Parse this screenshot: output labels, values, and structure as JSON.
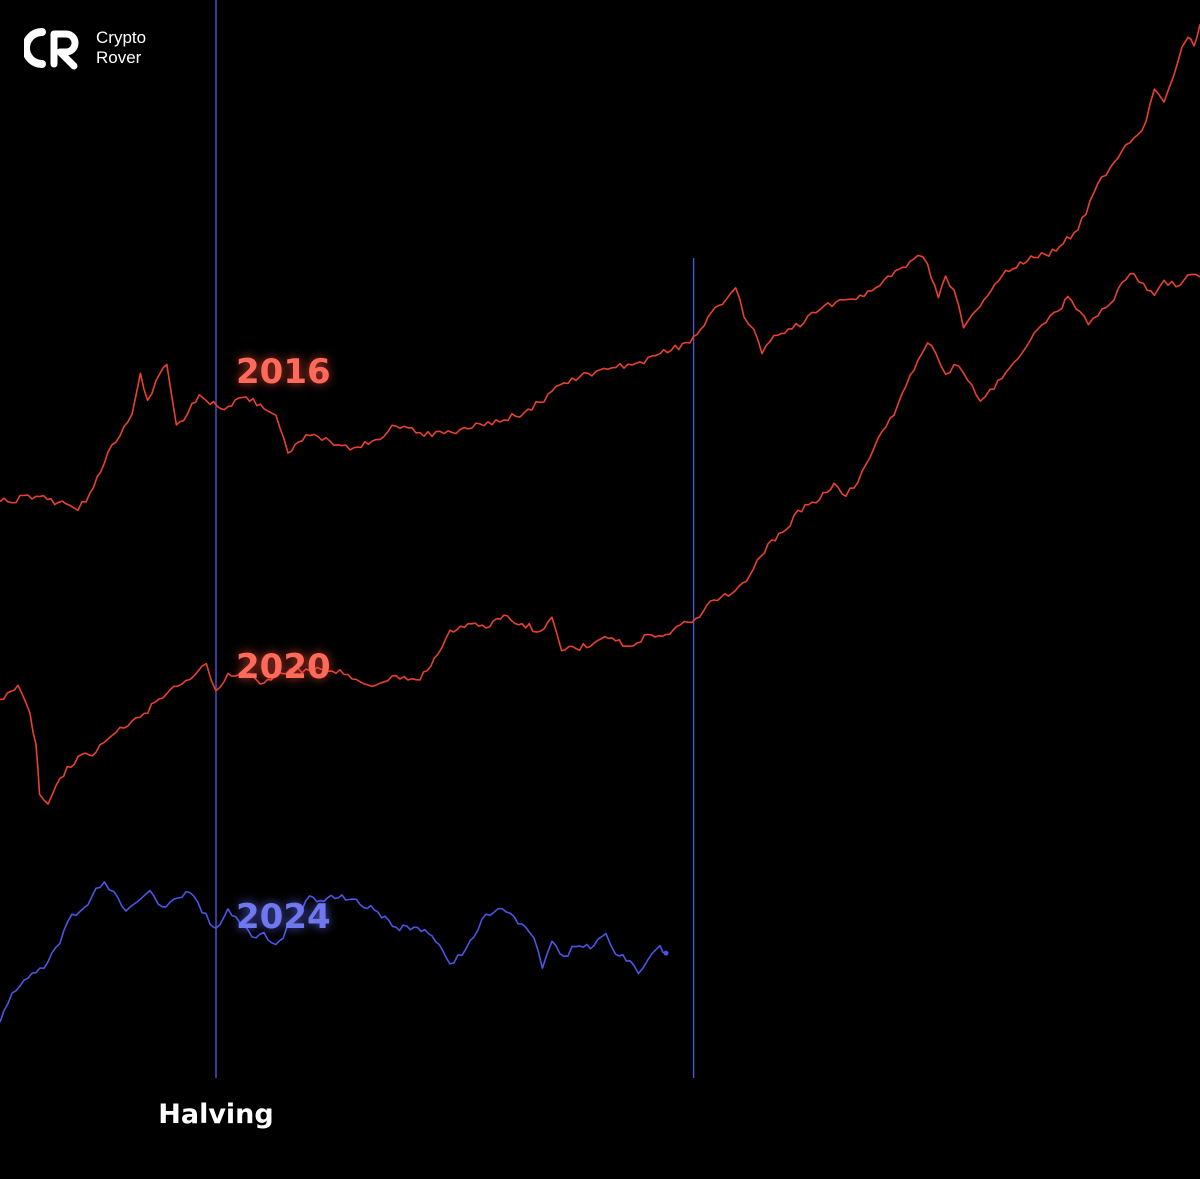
{
  "brand": {
    "line1": "Crypto",
    "line2": "Rover",
    "icon": "cr-logo-icon"
  },
  "colors": {
    "background": "#000000",
    "red_series": "#e8412f",
    "red_label": "#ff6a5a",
    "blue_series": "#4b55e6",
    "blue_label": "#6f78ee",
    "halving_line": "#4a55d8",
    "text": "#ffffff"
  },
  "chart_data": {
    "type": "line",
    "title": "",
    "xlabel": "",
    "ylabel": "",
    "grid": false,
    "axes_visible": false,
    "x_unit": "percent of horizontal span",
    "y_unit": "relative price level (0 = bottom, 100 = top)",
    "series": [
      {
        "name": "2016",
        "color": "#e8412f",
        "points": [
          [
            0,
            55.4
          ],
          [
            3,
            55.9
          ],
          [
            5.5,
            55.2
          ],
          [
            6.5,
            54.6
          ],
          [
            7.5,
            56.2
          ],
          [
            9,
            60
          ],
          [
            10,
            61.5
          ],
          [
            11,
            63.5
          ],
          [
            11.7,
            67.3
          ],
          [
            12.3,
            64.8
          ],
          [
            13,
            66.6
          ],
          [
            13.9,
            68.1
          ],
          [
            14.7,
            62.5
          ],
          [
            15.3,
            62.9
          ],
          [
            16,
            64.5
          ],
          [
            16.6,
            65.3
          ],
          [
            17.5,
            64.4
          ],
          [
            19,
            64.2
          ],
          [
            20.5,
            65.1
          ],
          [
            22,
            64
          ],
          [
            23,
            63.4
          ],
          [
            24,
            59.9
          ],
          [
            25.5,
            61.6
          ],
          [
            27.5,
            61
          ],
          [
            29.5,
            60.4
          ],
          [
            31,
            61
          ],
          [
            33,
            62.4
          ],
          [
            35,
            61.8
          ],
          [
            37,
            61.7
          ],
          [
            40,
            62.6
          ],
          [
            43,
            63.3
          ],
          [
            45,
            64.6
          ],
          [
            47,
            66.4
          ],
          [
            50,
            67.6
          ],
          [
            53,
            68.2
          ],
          [
            55,
            69.1
          ],
          [
            57.5,
            70.1
          ],
          [
            59,
            72.5
          ],
          [
            60.5,
            74.1
          ],
          [
            61.3,
            75.2
          ],
          [
            62,
            72.5
          ],
          [
            62.8,
            71.4
          ],
          [
            63.5,
            69.1
          ],
          [
            64.5,
            70.8
          ],
          [
            66,
            71.4
          ],
          [
            68,
            72.9
          ],
          [
            70,
            74.1
          ],
          [
            72,
            74.4
          ],
          [
            74,
            76.3
          ],
          [
            75.5,
            77.1
          ],
          [
            76.5,
            78.2
          ],
          [
            77.3,
            77.4
          ],
          [
            78.2,
            74.3
          ],
          [
            78.8,
            76.3
          ],
          [
            79.5,
            75
          ],
          [
            80.3,
            71.5
          ],
          [
            81,
            72.7
          ],
          [
            82,
            74.1
          ],
          [
            83.5,
            76.3
          ],
          [
            85,
            77.6
          ],
          [
            86.5,
            78
          ],
          [
            88,
            78.6
          ],
          [
            89.5,
            80.3
          ],
          [
            90.5,
            82
          ],
          [
            91.5,
            84.9
          ],
          [
            92.5,
            86.3
          ],
          [
            93.5,
            87.9
          ],
          [
            94.5,
            89.1
          ],
          [
            95.5,
            90.6
          ],
          [
            96.2,
            93.6
          ],
          [
            97,
            92.4
          ],
          [
            97.8,
            94.8
          ],
          [
            98.5,
            97.5
          ],
          [
            99,
            98.4
          ],
          [
            99.5,
            97.6
          ],
          [
            100,
            99.6
          ]
        ]
      },
      {
        "name": "2020",
        "color": "#e8412f",
        "points": [
          [
            0,
            37.1
          ],
          [
            1.5,
            38.4
          ],
          [
            2.5,
            35.8
          ],
          [
            3,
            32.9
          ],
          [
            3.3,
            28.3
          ],
          [
            4,
            27.4
          ],
          [
            5,
            29.8
          ],
          [
            6.5,
            31.8
          ],
          [
            8,
            32.2
          ],
          [
            10,
            34.5
          ],
          [
            12,
            35.8
          ],
          [
            14.5,
            38.3
          ],
          [
            16.5,
            39.7
          ],
          [
            17.2,
            40.4
          ],
          [
            18,
            37.9
          ],
          [
            19,
            39.5
          ],
          [
            20.5,
            39.4
          ],
          [
            22,
            38.6
          ],
          [
            23.5,
            39.5
          ],
          [
            25.5,
            39.9
          ],
          [
            27,
            39.8
          ],
          [
            29,
            39.4
          ],
          [
            31,
            38.3
          ],
          [
            33,
            39.3
          ],
          [
            35,
            38.9
          ],
          [
            36.5,
            41.3
          ],
          [
            37.5,
            43.5
          ],
          [
            39,
            44.1
          ],
          [
            40.5,
            43.7
          ],
          [
            42,
            44.9
          ],
          [
            43.5,
            44.1
          ],
          [
            45,
            43.4
          ],
          [
            46,
            44.7
          ],
          [
            46.8,
            41.6
          ],
          [
            48,
            41.8
          ],
          [
            49.5,
            42.3
          ],
          [
            51,
            42.8
          ],
          [
            52.5,
            42
          ],
          [
            54,
            43.1
          ],
          [
            55.5,
            43.1
          ],
          [
            57,
            44.3
          ],
          [
            58,
            44.6
          ],
          [
            59.5,
            46.3
          ],
          [
            61,
            46.9
          ],
          [
            62.5,
            48.6
          ],
          [
            64,
            51.5
          ],
          [
            65.5,
            52.8
          ],
          [
            66.5,
            54.6
          ],
          [
            68,
            55.3
          ],
          [
            69.5,
            57.1
          ],
          [
            70.5,
            55.9
          ],
          [
            71.5,
            57.2
          ],
          [
            72.5,
            59.5
          ],
          [
            73.5,
            61.9
          ],
          [
            74.5,
            63.4
          ],
          [
            75.5,
            66.1
          ],
          [
            76.5,
            68.5
          ],
          [
            77.3,
            70.1
          ],
          [
            78,
            69.1
          ],
          [
            78.8,
            67.2
          ],
          [
            79.5,
            68.1
          ],
          [
            80.3,
            67.3
          ],
          [
            81,
            66.2
          ],
          [
            81.7,
            64.7
          ],
          [
            82.5,
            65.8
          ],
          [
            83.5,
            66.8
          ],
          [
            84.5,
            68.3
          ],
          [
            85.5,
            69.7
          ],
          [
            86.5,
            71.4
          ],
          [
            87.5,
            72.6
          ],
          [
            88.5,
            73.3
          ],
          [
            89,
            74.4
          ],
          [
            90,
            73
          ],
          [
            90.7,
            71.8
          ],
          [
            91.5,
            72.6
          ],
          [
            92.5,
            73.7
          ],
          [
            93.5,
            75.7
          ],
          [
            94.5,
            76.5
          ],
          [
            95.3,
            75.6
          ],
          [
            96.2,
            74.5
          ],
          [
            97,
            75.9
          ],
          [
            98,
            75.3
          ],
          [
            99,
            76.4
          ],
          [
            100,
            76.2
          ]
        ]
      },
      {
        "name": "2024",
        "color": "#4b55e6",
        "points": [
          [
            0,
            7.2
          ],
          [
            1,
            9.9
          ],
          [
            2,
            11.1
          ],
          [
            3,
            11.8
          ],
          [
            4,
            12.8
          ],
          [
            5,
            14.5
          ],
          [
            6,
            17.2
          ],
          [
            7,
            17.8
          ],
          [
            8,
            19.6
          ],
          [
            8.7,
            20.2
          ],
          [
            9.5,
            19.3
          ],
          [
            10.5,
            17.5
          ],
          [
            11.5,
            18.4
          ],
          [
            12.5,
            19.4
          ],
          [
            13.5,
            17.9
          ],
          [
            14.5,
            18.6
          ],
          [
            15.5,
            19.3
          ],
          [
            16.5,
            18.3
          ],
          [
            17.5,
            16.3
          ],
          [
            18,
            15.9
          ],
          [
            19,
            17.7
          ],
          [
            20,
            16.4
          ],
          [
            21,
            15.1
          ],
          [
            22,
            15.5
          ],
          [
            23,
            14.4
          ],
          [
            24.5,
            16.6
          ],
          [
            25.8,
            18.9
          ],
          [
            27,
            18.4
          ],
          [
            28.5,
            19
          ],
          [
            30,
            18.1
          ],
          [
            31.5,
            17.4
          ],
          [
            33,
            16
          ],
          [
            34.5,
            16
          ],
          [
            36,
            15.2
          ],
          [
            37.5,
            12.6
          ],
          [
            38.5,
            13.4
          ],
          [
            39.5,
            15.1
          ],
          [
            40.5,
            17.2
          ],
          [
            41.5,
            17.7
          ],
          [
            42.5,
            17.3
          ],
          [
            43.5,
            16.3
          ],
          [
            44.5,
            15
          ],
          [
            45.2,
            12.2
          ],
          [
            46,
            14.7
          ],
          [
            47,
            13.3
          ],
          [
            48,
            14.2
          ],
          [
            49.5,
            14.3
          ],
          [
            50.5,
            15.4
          ],
          [
            51.3,
            13.5
          ],
          [
            52.5,
            12.9
          ],
          [
            53.2,
            11.7
          ],
          [
            54,
            13
          ],
          [
            55,
            14.3
          ],
          [
            55.5,
            13.6
          ]
        ]
      }
    ],
    "annotations": [
      {
        "type": "year_label",
        "text": "2016",
        "series": "2016",
        "color": "#ff6a5a"
      },
      {
        "type": "year_label",
        "text": "2020",
        "series": "2020",
        "color": "#ff6a5a"
      },
      {
        "type": "year_label",
        "text": "2024",
        "series": "2024",
        "color": "#6f78ee"
      },
      {
        "type": "vertical_line",
        "text": "Halving",
        "x": 18
      },
      {
        "type": "vertical_line",
        "text": "",
        "x": 57.8
      }
    ]
  }
}
